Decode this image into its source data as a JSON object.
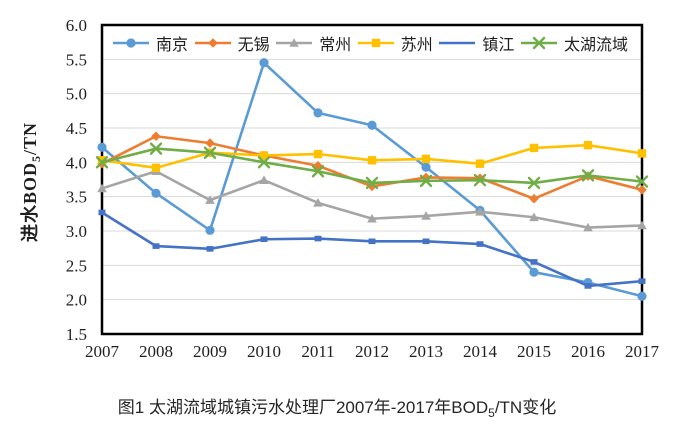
{
  "figure": {
    "y_axis_title": {
      "prefix": "进水BOD",
      "sub": "5",
      "suffix": "/TN"
    },
    "caption": {
      "prefix": "图1 太湖流域城镇污水处理厂2007年-2017年BOD",
      "sub": "5",
      "suffix": "/TN变化"
    }
  },
  "chart_data": {
    "type": "line",
    "x": [
      2007,
      2008,
      2009,
      2010,
      2011,
      2012,
      2013,
      2014,
      2015,
      2016,
      2017
    ],
    "xtick_labels": [
      "2007",
      "2008",
      "2009",
      "2010",
      "2011",
      "2012",
      "2013",
      "2014",
      "2015",
      "2016",
      "2017"
    ],
    "ytick_labels": [
      "1.5",
      "2.0",
      "2.5",
      "3.0",
      "3.5",
      "4.0",
      "4.5",
      "5.0",
      "5.5",
      "6.0"
    ],
    "ylim": [
      1.5,
      6.0
    ],
    "ytick_step": 0.5,
    "grid": "horizontal",
    "gridline_color": "#d9d9d9",
    "frame_color": "#000000",
    "legend_position": "top-inside",
    "series": [
      {
        "name": "南京",
        "color": "#5B9BD5",
        "marker": "circle",
        "values": [
          4.22,
          3.55,
          3.01,
          5.45,
          4.72,
          4.54,
          3.93,
          3.3,
          2.4,
          2.25,
          2.05
        ]
      },
      {
        "name": "无锡",
        "color": "#ED7D31",
        "marker": "diamond",
        "values": [
          3.98,
          4.38,
          4.28,
          4.1,
          3.95,
          3.65,
          3.78,
          3.77,
          3.47,
          3.8,
          3.6
        ]
      },
      {
        "name": "常州",
        "color": "#A5A5A5",
        "marker": "triangle",
        "values": [
          3.62,
          3.87,
          3.45,
          3.74,
          3.41,
          3.18,
          3.22,
          3.28,
          3.2,
          3.05,
          3.08
        ]
      },
      {
        "name": "苏州",
        "color": "#FFC000",
        "marker": "square",
        "values": [
          4.03,
          3.92,
          4.14,
          4.1,
          4.12,
          4.03,
          4.05,
          3.98,
          4.21,
          4.25,
          4.13
        ]
      },
      {
        "name": "镇江",
        "color": "#4472C4",
        "marker": "dash",
        "values": [
          3.27,
          2.78,
          2.74,
          2.88,
          2.89,
          2.85,
          2.85,
          2.81,
          2.55,
          2.2,
          2.27
        ]
      },
      {
        "name": "太湖流域",
        "color": "#70AD47",
        "marker": "x",
        "values": [
          4.0,
          4.2,
          4.14,
          4.0,
          3.87,
          3.7,
          3.73,
          3.74,
          3.7,
          3.81,
          3.72
        ]
      }
    ]
  }
}
